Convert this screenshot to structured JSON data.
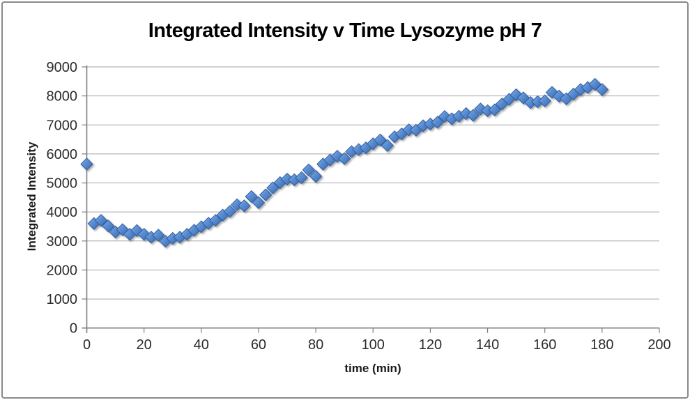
{
  "frame": {
    "border_color": "#8a8a8a"
  },
  "chart_data": {
    "type": "scatter",
    "title": "Integrated Intensity v Time Lysozyme pH 7",
    "xlabel": "time (min)",
    "ylabel": "Integrated Intensity",
    "xlim": [
      0,
      200
    ],
    "ylim": [
      0,
      9000
    ],
    "xticks": [
      0,
      20,
      40,
      60,
      80,
      100,
      120,
      140,
      160,
      180,
      200
    ],
    "yticks": [
      0,
      1000,
      2000,
      3000,
      4000,
      5000,
      6000,
      7000,
      8000,
      9000
    ],
    "grid": "horizontal-only",
    "legend": "none",
    "axis_color": "#7f7f7f",
    "gridline_color": "#a6a6a6",
    "tick_label_color": "#2b2b2b",
    "marker": {
      "shape": "diamond",
      "size": 17,
      "fill_light": "#8fb4e8",
      "fill_mid": "#5c8fd6",
      "fill_dark": "#3a69ac",
      "stroke": "#2e5e9e",
      "shadow": "rgba(85,85,85,0.5)"
    },
    "points": [
      [
        0,
        5650
      ],
      [
        2.5,
        3600
      ],
      [
        5,
        3710
      ],
      [
        7.5,
        3520
      ],
      [
        10,
        3310
      ],
      [
        12.5,
        3390
      ],
      [
        15,
        3230
      ],
      [
        17.5,
        3360
      ],
      [
        20,
        3230
      ],
      [
        22.5,
        3130
      ],
      [
        25,
        3200
      ],
      [
        27.5,
        2990
      ],
      [
        30,
        3090
      ],
      [
        32.5,
        3130
      ],
      [
        35,
        3230
      ],
      [
        37.5,
        3370
      ],
      [
        40,
        3490
      ],
      [
        42.5,
        3610
      ],
      [
        45,
        3710
      ],
      [
        47.5,
        3890
      ],
      [
        50,
        4020
      ],
      [
        52.5,
        4250
      ],
      [
        55,
        4210
      ],
      [
        57.5,
        4530
      ],
      [
        60,
        4320
      ],
      [
        62.5,
        4590
      ],
      [
        65,
        4830
      ],
      [
        67.5,
        5010
      ],
      [
        70,
        5130
      ],
      [
        72.5,
        5110
      ],
      [
        75,
        5180
      ],
      [
        77.5,
        5450
      ],
      [
        80,
        5230
      ],
      [
        82.5,
        5650
      ],
      [
        85,
        5790
      ],
      [
        87.5,
        5920
      ],
      [
        90,
        5840
      ],
      [
        92.5,
        6080
      ],
      [
        95,
        6150
      ],
      [
        97.5,
        6210
      ],
      [
        100,
        6350
      ],
      [
        102.5,
        6480
      ],
      [
        105,
        6290
      ],
      [
        107.5,
        6590
      ],
      [
        110,
        6690
      ],
      [
        112.5,
        6830
      ],
      [
        115,
        6820
      ],
      [
        117.5,
        6970
      ],
      [
        120,
        7030
      ],
      [
        122.5,
        7090
      ],
      [
        125,
        7290
      ],
      [
        127.5,
        7210
      ],
      [
        130,
        7300
      ],
      [
        132.5,
        7390
      ],
      [
        135,
        7330
      ],
      [
        137.5,
        7550
      ],
      [
        140,
        7490
      ],
      [
        142.5,
        7520
      ],
      [
        145,
        7720
      ],
      [
        147.5,
        7880
      ],
      [
        150,
        8040
      ],
      [
        152.5,
        7930
      ],
      [
        155,
        7770
      ],
      [
        157.5,
        7800
      ],
      [
        160,
        7830
      ],
      [
        162.5,
        8120
      ],
      [
        165,
        7990
      ],
      [
        167.5,
        7900
      ],
      [
        170,
        8060
      ],
      [
        172.5,
        8220
      ],
      [
        175,
        8290
      ],
      [
        177.5,
        8400
      ],
      [
        180,
        8220
      ]
    ]
  }
}
